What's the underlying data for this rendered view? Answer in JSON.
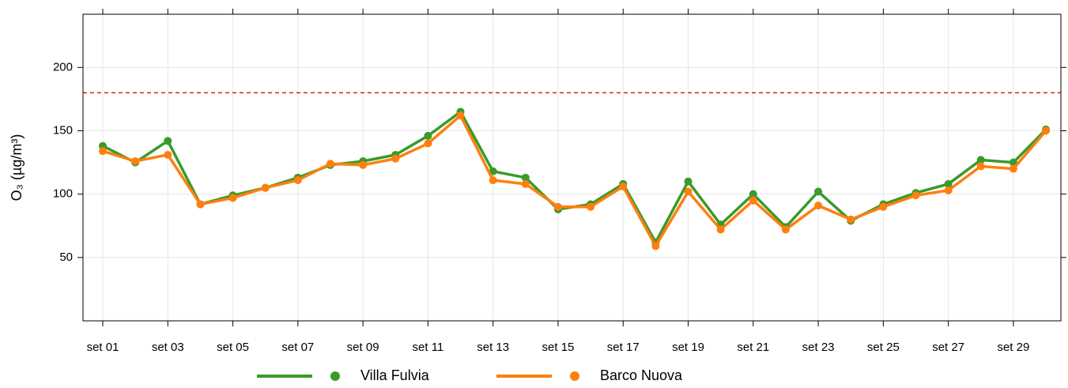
{
  "chart_data": {
    "type": "line",
    "y_label": "O₃ (µg/m³)",
    "categories": [
      "set 01",
      null,
      "set 03",
      null,
      "set 05",
      null,
      "set 07",
      null,
      "set 09",
      null,
      "set 11",
      null,
      "set 13",
      null,
      "set 15",
      null,
      "set 17",
      null,
      "set 19",
      null,
      "set 21",
      null,
      "set 23",
      null,
      "set 25",
      null,
      "set 27",
      null,
      "set 29",
      null
    ],
    "series": [
      {
        "name": "Villa Fulvia",
        "color": "#3a9a2a",
        "values": [
          138,
          125,
          142,
          92,
          99,
          105,
          113,
          123,
          126,
          131,
          146,
          165,
          118,
          113,
          88,
          92,
          108,
          62,
          110,
          76,
          100,
          74,
          102,
          79,
          92,
          101,
          108,
          127,
          125,
          151
        ]
      },
      {
        "name": "Barco Nuova",
        "color": "#ff7f0e",
        "values": [
          134,
          126,
          131,
          92,
          97,
          105,
          111,
          124,
          123,
          128,
          140,
          162,
          111,
          108,
          90,
          90,
          106,
          59,
          102,
          72,
          95,
          72,
          91,
          80,
          90,
          99,
          103,
          122,
          120,
          150
        ]
      }
    ],
    "threshold": 180,
    "threshold_color": "#e41a1c",
    "ylim": [
      0,
      242
    ],
    "yticks": [
      50,
      100,
      150,
      200
    ],
    "grid": true,
    "legend": "bottom"
  }
}
